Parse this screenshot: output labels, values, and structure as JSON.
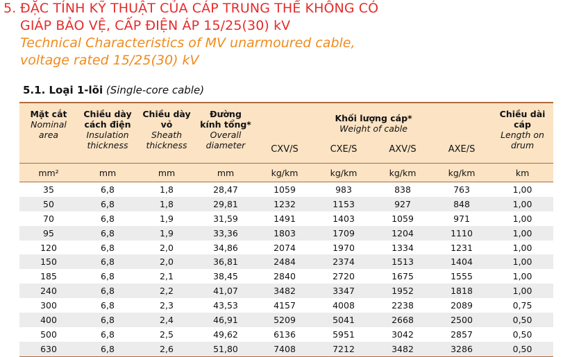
{
  "heading": {
    "number": "5.",
    "vi_line1": "ĐẶC TÍNH KỸ THUẬT CỦA CÁP TRUNG THẾ KHÔNG CÓ",
    "vi_line2": "GIÁP BẢO VỆ, CẤP ĐIỆN ÁP 15/25(30) kV",
    "en_line1": "Technical Characteristics of  MV unarmoured cable,",
    "en_line2": "voltage rated 15/25(30) kV"
  },
  "subheading": {
    "bold": "5.1. Loại 1-lõi",
    "italic": "(Single-core cable)"
  },
  "table": {
    "columns": {
      "area": {
        "vi": "Mặt cắt",
        "en1": "Nominal",
        "en2": "area"
      },
      "insulation": {
        "vi1": "Chiều dày",
        "vi2": "cách điện",
        "en1": "Insulation",
        "en2": "thickness"
      },
      "sheath": {
        "vi1": "Chiều dày",
        "vi2": "vỏ",
        "en1": "Sheath",
        "en2": "thickness"
      },
      "diameter": {
        "vi1": "Đường",
        "vi2": "kính tổng*",
        "en1": "Overall",
        "en2": "diameter"
      },
      "weight": {
        "vi": "Khối lượng cáp*",
        "en": "Weight of cable"
      },
      "length": {
        "vi1": "Chiều dài",
        "vi2": "cáp",
        "en1": "Length on",
        "en2": "drum"
      }
    },
    "weight_subcolumns": [
      "CXV/S",
      "CXE/S",
      "AXV/S",
      "AXE/S"
    ],
    "units": [
      "mm²",
      "mm",
      "mm",
      "mm",
      "kg/km",
      "kg/km",
      "kg/km",
      "kg/km",
      "km"
    ],
    "rows": [
      [
        "35",
        "6,8",
        "1,8",
        "28,47",
        "1059",
        "983",
        "838",
        "763",
        "1,00"
      ],
      [
        "50",
        "6,8",
        "1,8",
        "29,81",
        "1232",
        "1153",
        "927",
        "848",
        "1,00"
      ],
      [
        "70",
        "6,8",
        "1,9",
        "31,59",
        "1491",
        "1403",
        "1059",
        "971",
        "1,00"
      ],
      [
        "95",
        "6,8",
        "1,9",
        "33,36",
        "1803",
        "1709",
        "1204",
        "1110",
        "1,00"
      ],
      [
        "120",
        "6,8",
        "2,0",
        "34,86",
        "2074",
        "1970",
        "1334",
        "1231",
        "1,00"
      ],
      [
        "150",
        "6,8",
        "2,0",
        "36,81",
        "2484",
        "2374",
        "1513",
        "1404",
        "1,00"
      ],
      [
        "185",
        "6,8",
        "2,1",
        "38,45",
        "2840",
        "2720",
        "1675",
        "1555",
        "1,00"
      ],
      [
        "240",
        "6,8",
        "2,2",
        "41,07",
        "3482",
        "3347",
        "1952",
        "1818",
        "1,00"
      ],
      [
        "300",
        "6,8",
        "2,3",
        "43,53",
        "4157",
        "4008",
        "2238",
        "2089",
        "0,75"
      ],
      [
        "400",
        "6,8",
        "2,4",
        "46,91",
        "5209",
        "5041",
        "2668",
        "2500",
        "0,50"
      ],
      [
        "500",
        "6,8",
        "2,5",
        "49,62",
        "6136",
        "5951",
        "3042",
        "2857",
        "0,50"
      ],
      [
        "630",
        "6,8",
        "2,6",
        "51,80",
        "7408",
        "7212",
        "3482",
        "3286",
        "0,50"
      ]
    ]
  }
}
